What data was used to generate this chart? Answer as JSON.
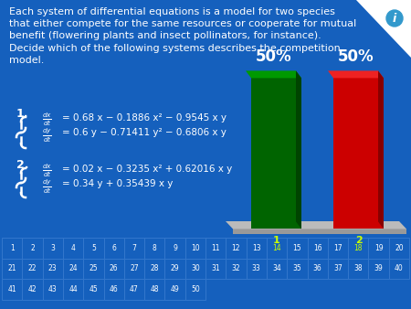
{
  "background_color": "#1560bd",
  "title_text": "Each system of differential equations is a model for two species\nthat either compete for the same resources or cooperate for mutual\nbenefit (flowering plants and insect pollinators, for instance).\nDecide which of the following systems describes the competition\nmodel.",
  "title_color": "#ffffff",
  "title_fontsize": 8.0,
  "eq1_label": "1.",
  "eq1_line1": "= 0.68 x − 0.1886 x² − 0.9545 x y",
  "eq1_line2": "= 0.6 y − 0.71411 y² − 0.6806 x y",
  "eq2_label": "2.",
  "eq2_line1": "= 0.02 x − 0.3235 x² + 0.62016 x y",
  "eq2_line2": "= 0.34 y + 0.35439 x y",
  "bar_values": [
    50,
    50
  ],
  "bar_colors": [
    "#006400",
    "#cc0000"
  ],
  "bar_label_color": "#ffffff",
  "bar_label_fontsize": 12,
  "grid_numbers": [
    1,
    2,
    3,
    4,
    5,
    6,
    7,
    8,
    9,
    10,
    11,
    12,
    13,
    14,
    15,
    16,
    17,
    18,
    19,
    20,
    21,
    22,
    23,
    24,
    25,
    26,
    27,
    28,
    29,
    30,
    31,
    32,
    33,
    34,
    35,
    36,
    37,
    38,
    39,
    40,
    41,
    42,
    43,
    44,
    45,
    46,
    47,
    48,
    49,
    50
  ],
  "marked_cells": [
    14,
    18
  ],
  "eq_color": "#ffffff",
  "marked_color": "#ccff00",
  "info_bg": "#4fc3f7",
  "corner_white": "#ffffff",
  "platform_color": "#aaaaaa",
  "grid_border_color": "#2266cc",
  "grid_text_color": "#ffffff"
}
